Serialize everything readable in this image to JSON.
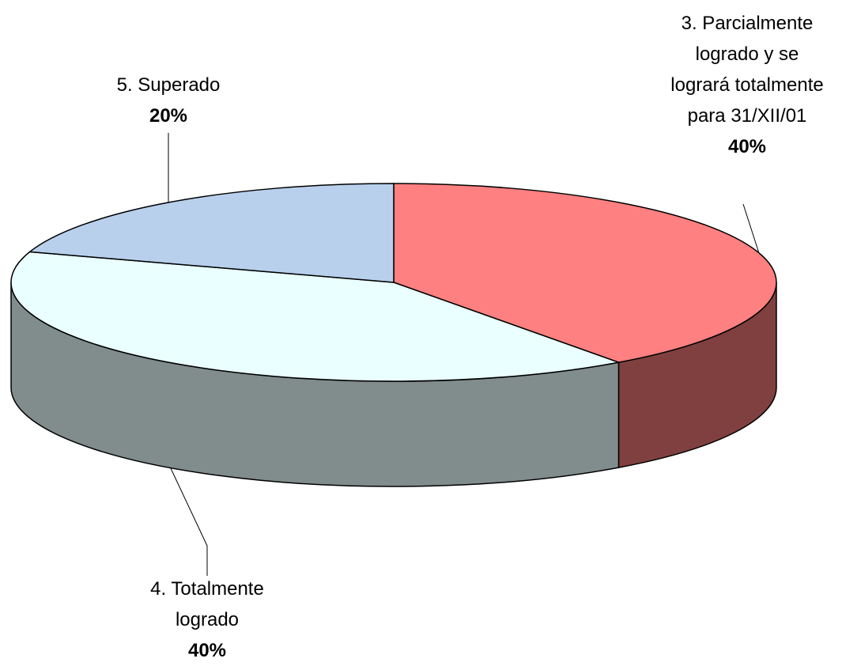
{
  "chart_data": {
    "type": "pie3d",
    "categories": [
      "3. Parcialmente logrado y se logrará totalmente para 31/XII/01",
      "4. Totalmente logrado",
      "5. Superado"
    ],
    "values": [
      40,
      40,
      20
    ],
    "value_labels": [
      "40%",
      "40%",
      "20%"
    ],
    "colors": [
      "#ff8080",
      "#eaffff",
      "#b8d0ec"
    ]
  }
}
